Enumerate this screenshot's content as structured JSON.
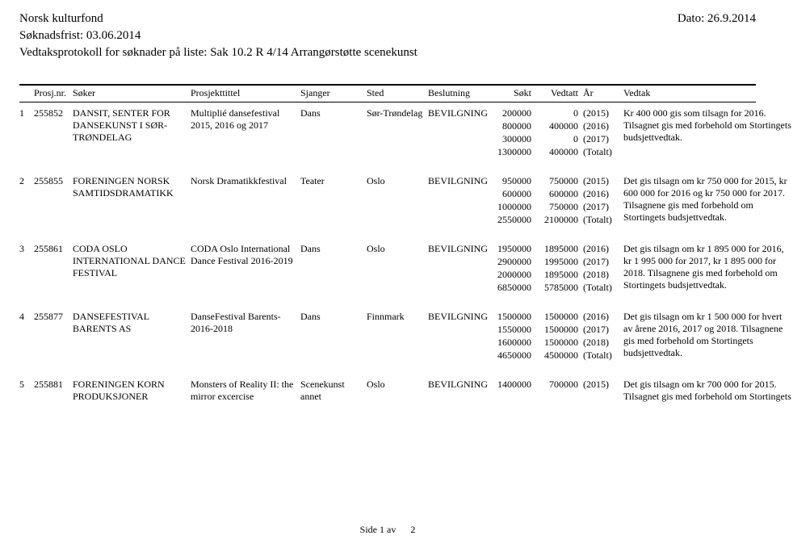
{
  "header": {
    "title": "Norsk kulturfond",
    "deadline_label": "Søknadsfrist:",
    "deadline": "03.06.2014",
    "subtitle": "Vedtaksprotokoll for søknader på liste: Sak 10.2 R 4/14 Arrangørstøtte scenekunst",
    "date_label": "Dato:",
    "date": "26.9.2014"
  },
  "columns": {
    "idx": "",
    "prosjnr": "Prosj.nr.",
    "soker": "Søker",
    "prosjekttittel": "Prosjekttittel",
    "sjanger": "Sjanger",
    "sted": "Sted",
    "beslutning": "Beslutning",
    "sokt": "Søkt",
    "vedtatt": "Vedtatt",
    "ar": "År",
    "vedtak": "Vedtak"
  },
  "rows": [
    {
      "idx": "1",
      "prosjnr": "255852",
      "soker": "DANSIT, SENTER FOR DANSEKUNST I SØR-TRØNDELAG",
      "prosjekttittel": "Multiplié dansefestival 2015, 2016 og 2017",
      "sjanger": "Dans",
      "sted": "Sør-Trøndelag",
      "beslutning": "BEVILGNING",
      "sokt": [
        "200000",
        "800000",
        "300000",
        "1300000"
      ],
      "vedtatt": [
        "0",
        "400000",
        "0",
        "400000"
      ],
      "ar": [
        "(2015)",
        "(2016)",
        "(2017)",
        "(Totalt)"
      ],
      "vedtak": "Kr 400 000 gis som tilsagn for 2016. Tilsagnet gis med forbehold om Stortingets budsjettvedtak."
    },
    {
      "idx": "2",
      "prosjnr": "255855",
      "soker": "FORENINGEN NORSK SAMTIDSDRAMATIKK",
      "prosjekttittel": "Norsk Dramatikkfestival",
      "sjanger": "Teater",
      "sted": "Oslo",
      "beslutning": "BEVILGNING",
      "sokt": [
        "950000",
        "600000",
        "1000000",
        "2550000"
      ],
      "vedtatt": [
        "750000",
        "600000",
        "750000",
        "2100000"
      ],
      "ar": [
        "(2015)",
        "(2016)",
        "(2017)",
        "(Totalt)"
      ],
      "vedtak": "Det gis tilsagn om kr 750 000 for 2015, kr 600 000 for 2016 og kr 750 000 for 2017. Tilsagnene gis med forbehold om Stortingets budsjettvedtak."
    },
    {
      "idx": "3",
      "prosjnr": "255861",
      "soker": "CODA OSLO INTERNATIONAL DANCE FESTIVAL",
      "prosjekttittel": "CODA Oslo International Dance Festival 2016-2019",
      "sjanger": "Dans",
      "sted": "Oslo",
      "beslutning": "BEVILGNING",
      "sokt": [
        "1950000",
        "2900000",
        "2000000",
        "6850000"
      ],
      "vedtatt": [
        "1895000",
        "1995000",
        "1895000",
        "5785000"
      ],
      "ar": [
        "(2016)",
        "(2017)",
        "(2018)",
        "(Totalt)"
      ],
      "vedtak": "Det gis tilsagn om kr 1 895 000 for 2016, kr 1 995 000 for 2017, kr 1 895 000 for 2018. Tilsagnene gis med forbehold om Stortingets budsjettvedtak."
    },
    {
      "idx": "4",
      "prosjnr": "255877",
      "soker": "DANSEFESTIVAL BARENTS AS",
      "prosjekttittel": "DanseFestival Barents- 2016-2018",
      "sjanger": "Dans",
      "sted": "Finnmark",
      "beslutning": "BEVILGNING",
      "sokt": [
        "1500000",
        "1550000",
        "1600000",
        "4650000"
      ],
      "vedtatt": [
        "1500000",
        "1500000",
        "1500000",
        "4500000"
      ],
      "ar": [
        "(2016)",
        "(2017)",
        "(2018)",
        "(Totalt)"
      ],
      "vedtak": "Det gis tilsagn om kr 1 500 000 for hvert av årene 2016, 2017 og 2018. Tilsagnene gis med forbehold om Stortingets budsjettvedtak."
    },
    {
      "idx": "5",
      "prosjnr": "255881",
      "soker": "FORENINGEN KORN PRODUKSJONER",
      "prosjekttittel": "Monsters of Reality II: the mirror excercise",
      "sjanger": "Scenekunst annet",
      "sted": "Oslo",
      "beslutning": "BEVILGNING",
      "sokt": [
        "1400000"
      ],
      "vedtatt": [
        "700000"
      ],
      "ar": [
        "(2015)"
      ],
      "vedtak": "Det gis tilsagn om kr 700 000 for 2015. Tilsagnet gis med forbehold om Stortingets"
    }
  ],
  "footer": {
    "page_label": "Side 1 av",
    "page_total": "2"
  }
}
